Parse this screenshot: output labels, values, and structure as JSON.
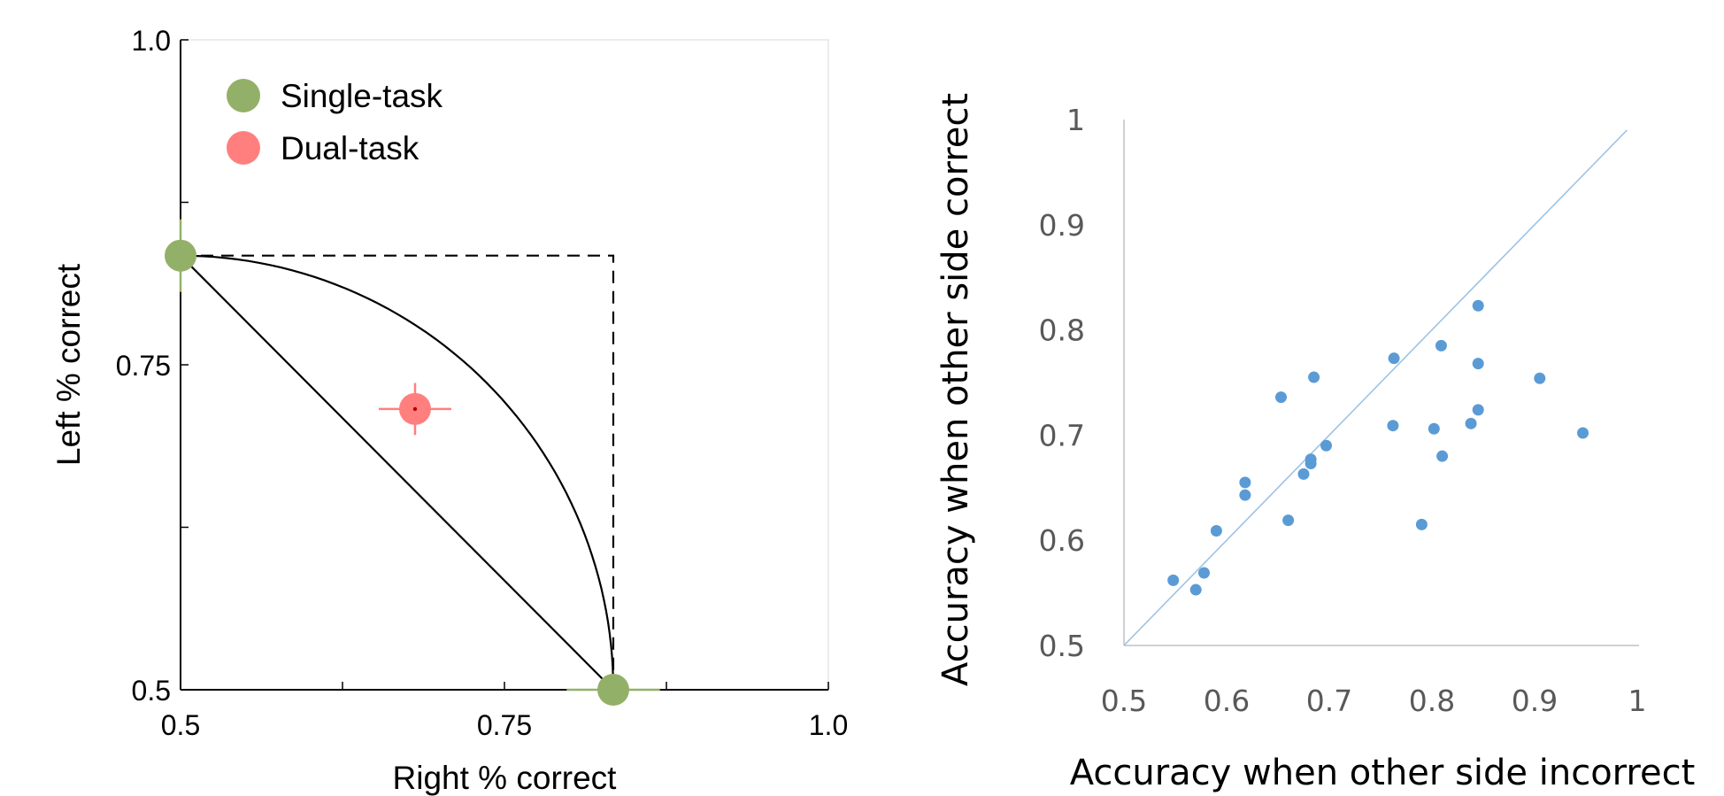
{
  "chart_data": [
    {
      "type": "scatter",
      "xlabel": "Right % correct",
      "ylabel": "Left % correct",
      "xlim": [
        0.5,
        1.0
      ],
      "ylim": [
        0.5,
        1.0
      ],
      "x_ticks": [
        0.5,
        0.625,
        0.75,
        0.875,
        1.0
      ],
      "y_ticks": [
        0.5,
        0.625,
        0.75,
        0.875,
        1.0
      ],
      "x_tick_labels": [
        "0.5",
        "0.75",
        "1.0"
      ],
      "y_tick_labels": [
        "0.5",
        "0.75",
        "1.0"
      ],
      "legend_position": "top-left",
      "series": [
        {
          "name": "Single-task",
          "color": "#93b068",
          "points": [
            {
              "x": 0.5,
              "y": 0.834,
              "x_err": 0,
              "y_err": 0.028
            },
            {
              "x": 0.834,
              "y": 0.5,
              "x_err": 0.036,
              "y_err": 0
            }
          ]
        },
        {
          "name": "Dual-task",
          "color": "#ff7f7f",
          "points": [
            {
              "x": 0.681,
              "y": 0.716,
              "x_err": 0.028,
              "y_err": 0.02
            }
          ]
        }
      ],
      "reference_curves": [
        {
          "kind": "dashed-rectangle",
          "corner": [
            0.834,
            0.834
          ],
          "color": "#000000"
        },
        {
          "kind": "straight-line",
          "from": [
            0.5,
            0.834
          ],
          "to": [
            0.834,
            0.5
          ],
          "color": "#000000"
        },
        {
          "kind": "convex-arc",
          "from": [
            0.5,
            0.834
          ],
          "to": [
            0.834,
            0.5
          ],
          "color": "#000000"
        }
      ]
    },
    {
      "type": "scatter",
      "xlabel": "Accuracy when other side incorrect",
      "ylabel": "Accuracy when other side correct",
      "xlim": [
        0.5,
        1.0
      ],
      "ylim": [
        0.5,
        1.0
      ],
      "x_ticks": [
        0.5,
        0.6,
        0.7,
        0.8,
        0.9,
        1.0
      ],
      "y_ticks": [
        0.5,
        0.6,
        0.7,
        0.8,
        0.9,
        1.0
      ],
      "x_tick_labels": [
        "0.5",
        "0.6",
        "0.7",
        "0.8",
        "0.9",
        "1"
      ],
      "y_tick_labels": [
        "0.5",
        "0.6",
        "0.7",
        "0.8",
        "0.9",
        "1"
      ],
      "identity_line": true,
      "point_color": "#5b9bd5",
      "line_color": "#9dc3e6",
      "points": [
        {
          "x": 0.548,
          "y": 0.562
        },
        {
          "x": 0.57,
          "y": 0.553
        },
        {
          "x": 0.578,
          "y": 0.569
        },
        {
          "x": 0.59,
          "y": 0.609
        },
        {
          "x": 0.618,
          "y": 0.643
        },
        {
          "x": 0.618,
          "y": 0.655
        },
        {
          "x": 0.653,
          "y": 0.736
        },
        {
          "x": 0.66,
          "y": 0.619
        },
        {
          "x": 0.675,
          "y": 0.663
        },
        {
          "x": 0.682,
          "y": 0.673
        },
        {
          "x": 0.682,
          "y": 0.677
        },
        {
          "x": 0.685,
          "y": 0.755
        },
        {
          "x": 0.697,
          "y": 0.69
        },
        {
          "x": 0.762,
          "y": 0.709
        },
        {
          "x": 0.763,
          "y": 0.773
        },
        {
          "x": 0.79,
          "y": 0.615
        },
        {
          "x": 0.802,
          "y": 0.706
        },
        {
          "x": 0.809,
          "y": 0.785
        },
        {
          "x": 0.81,
          "y": 0.68
        },
        {
          "x": 0.838,
          "y": 0.711
        },
        {
          "x": 0.845,
          "y": 0.724
        },
        {
          "x": 0.845,
          "y": 0.768
        },
        {
          "x": 0.845,
          "y": 0.823
        },
        {
          "x": 0.905,
          "y": 0.754
        },
        {
          "x": 0.947,
          "y": 0.702
        }
      ]
    }
  ]
}
